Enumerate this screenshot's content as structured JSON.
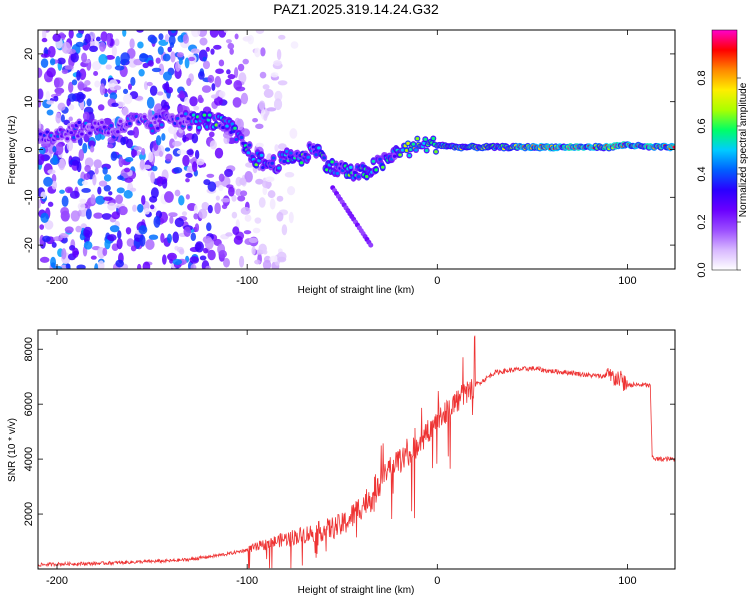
{
  "title": "PAZ1.2025.319.14.24.G32",
  "chart_data": [
    {
      "type": "heatmap",
      "name": "spectrogram",
      "xlabel": "Height of straight line (km)",
      "ylabel": "Frequency (Hz)",
      "xlim": [
        -210,
        125
      ],
      "ylim": [
        -25,
        25
      ],
      "x_ticks": [
        -200,
        -100,
        0,
        100
      ],
      "y_ticks": [
        -20,
        -10,
        0,
        10,
        20
      ],
      "ridge": {
        "x": [
          -205,
          -190,
          -180,
          -170,
          -160,
          -150,
          -140,
          -130,
          -120,
          -110,
          -100,
          -95,
          -90,
          -85,
          -80,
          -75,
          -70,
          -65,
          -60,
          -55,
          -50,
          -45,
          -40,
          -35,
          -30,
          -25,
          -20,
          -15,
          -10,
          0,
          10,
          20,
          40,
          60,
          80,
          90,
          100,
          110,
          125
        ],
        "y": [
          3,
          4,
          5,
          4,
          6,
          5,
          7,
          6,
          6,
          5,
          0,
          -2,
          -3,
          -3,
          -2,
          -1,
          -2,
          1,
          -2,
          -4,
          -4,
          -5,
          -5,
          -4,
          -3,
          -2,
          0,
          0,
          1,
          1,
          0.5,
          0.5,
          0.5,
          0.5,
          0.5,
          0.5,
          1,
          0.5,
          0.5
        ]
      },
      "colorbar": {
        "label": "Normalized spectral amplitude",
        "range": [
          0,
          1
        ],
        "ticks": [
          "0.0",
          "0.2",
          "0.4",
          "0.6",
          "0.8"
        ]
      },
      "colormap": [
        "#ffffff",
        "#d8b8ff",
        "#9b4dff",
        "#6a00ff",
        "#2a00ff",
        "#0060ff",
        "#00ccff",
        "#00ff66",
        "#aaff00",
        "#ffee00",
        "#ff8800",
        "#ff0000",
        "#ff00cc"
      ]
    },
    {
      "type": "line",
      "name": "snr",
      "xlabel": "Height of straight line (km)",
      "ylabel": "SNR (10 * v/v)",
      "xlim": [
        -210,
        125
      ],
      "ylim": [
        0,
        8700
      ],
      "x_ticks": [
        -200,
        -100,
        0,
        100
      ],
      "y_ticks": [
        2000,
        4000,
        6000,
        8000
      ],
      "color": "#ee3333",
      "series": [
        {
          "name": "SNR",
          "x": [
            -210,
            -200,
            -180,
            -160,
            -140,
            -130,
            -120,
            -110,
            -100,
            -90,
            -80,
            -70,
            -60,
            -50,
            -45,
            -40,
            -35,
            -30,
            -25,
            -20,
            -15,
            -10,
            -5,
            0,
            5,
            10,
            15,
            20,
            25,
            30,
            40,
            50,
            60,
            70,
            80,
            90,
            95,
            98,
            100,
            105,
            110,
            112,
            113,
            115,
            120,
            125
          ],
          "values": [
            150,
            180,
            200,
            250,
            300,
            350,
            450,
            550,
            700,
            900,
            1100,
            1250,
            1400,
            1600,
            1900,
            2300,
            2600,
            3200,
            3700,
            3900,
            4200,
            4500,
            5000,
            5400,
            5800,
            6100,
            6400,
            6700,
            6900,
            7150,
            7250,
            7300,
            7200,
            7150,
            7050,
            7000,
            6950,
            6800,
            6700,
            6700,
            6700,
            6650,
            4100,
            4000,
            4000,
            4000
          ]
        }
      ]
    }
  ]
}
